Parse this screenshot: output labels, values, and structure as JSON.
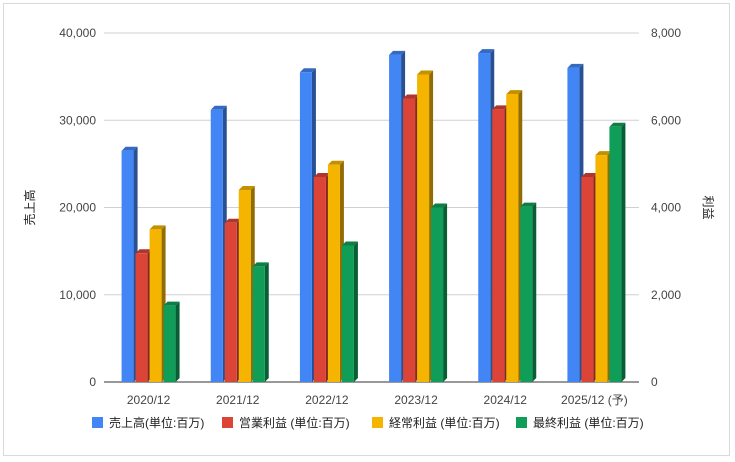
{
  "chart_data": {
    "type": "bar",
    "categories": [
      "2020/12",
      "2021/12",
      "2022/12",
      "2023/12",
      "2024/12",
      "2025/12 (予)"
    ],
    "y_left": {
      "label": "売上高",
      "range": [
        0,
        40000
      ],
      "ticks": [
        "0",
        "10,000",
        "20,000",
        "30,000",
        "40,000"
      ]
    },
    "y_right": {
      "label": "利益",
      "range": [
        0,
        8000
      ],
      "ticks": [
        "0",
        "2,000",
        "4,000",
        "6,000",
        "8,000"
      ]
    },
    "series": [
      {
        "name": "売上高(単位:百万)",
        "axis": "left",
        "color": "#4285f4",
        "values": [
          26500,
          31200,
          35500,
          37500,
          37700,
          36000
        ]
      },
      {
        "name": "営業利益 (単位:百万)",
        "axis": "right",
        "color": "#db4437",
        "values": [
          2950,
          3650,
          4700,
          6500,
          6250,
          4700
        ]
      },
      {
        "name": "経常利益 (単位:百万)",
        "axis": "right",
        "color": "#f4b400",
        "values": [
          3500,
          4400,
          4980,
          7050,
          6600,
          5200
        ]
      },
      {
        "name": "最終利益 (単位:百万)",
        "axis": "right",
        "color": "#0f9d58",
        "values": [
          1750,
          2650,
          3130,
          4000,
          4020,
          5850
        ]
      }
    ],
    "grid": true,
    "legend_position": "bottom"
  }
}
